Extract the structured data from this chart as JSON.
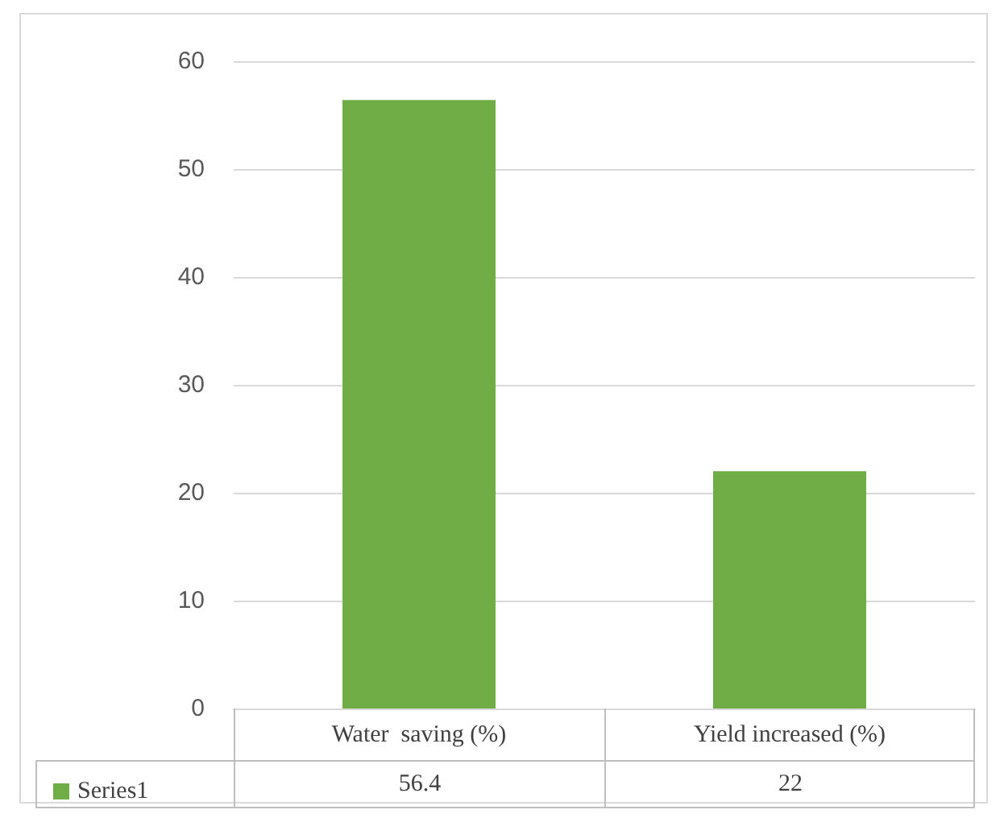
{
  "chart_data": {
    "type": "bar",
    "categories": [
      "Water  saving (%)",
      "Yield increased (%)"
    ],
    "series": [
      {
        "name": "Series1",
        "color": "#70ad47",
        "values": [
          56.4,
          22
        ]
      }
    ],
    "ylim": [
      0,
      60
    ],
    "yticks": [
      0,
      10,
      20,
      30,
      40,
      50,
      60
    ],
    "grid": "y",
    "legend": "bottom left",
    "data_labels": true
  }
}
